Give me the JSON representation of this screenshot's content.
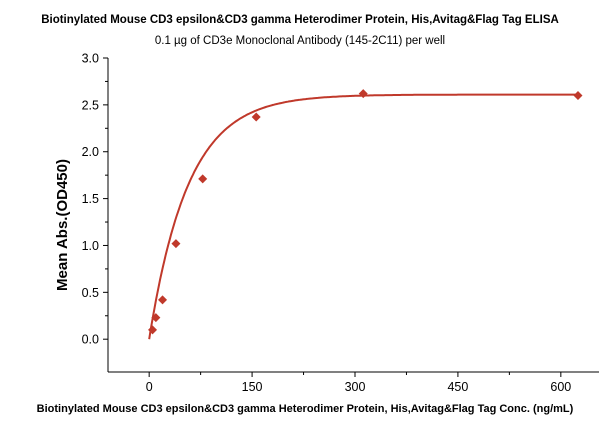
{
  "chart_data": {
    "type": "scatter",
    "title": "Biotinylated Mouse CD3 epsilon&CD3 gamma Heterodimer Protein, His,Avitag&Flag Tag ELISA",
    "subtitle": "0.1 µg of CD3e Monoclonal Antibody (145-2C11) per well",
    "xlabel": "Biotinylated Mouse CD3 epsilon&CD3 gamma Heterodimer Protein, His,Avitag&Flag Tag Conc. (ng/mL)",
    "ylabel": "Mean Abs.(OD450)",
    "xlim": [
      -60,
      660
    ],
    "ylim": [
      -0.35,
      3.0
    ],
    "x_ticks": [
      "0",
      "150",
      "300",
      "450",
      "600"
    ],
    "y_ticks": [
      "0.0",
      "0.5",
      "1.0",
      "1.5",
      "2.0",
      "2.5",
      "3.0"
    ],
    "grid": false,
    "series": [
      {
        "x": [
          4.9,
          9.8,
          19.5,
          39,
          78,
          156,
          312,
          625
        ],
        "y": [
          0.1,
          0.23,
          0.42,
          1.02,
          1.71,
          2.37,
          2.62,
          2.6
        ],
        "color": "#c0392b",
        "marker": "diamond",
        "fit": "curve"
      }
    ]
  }
}
